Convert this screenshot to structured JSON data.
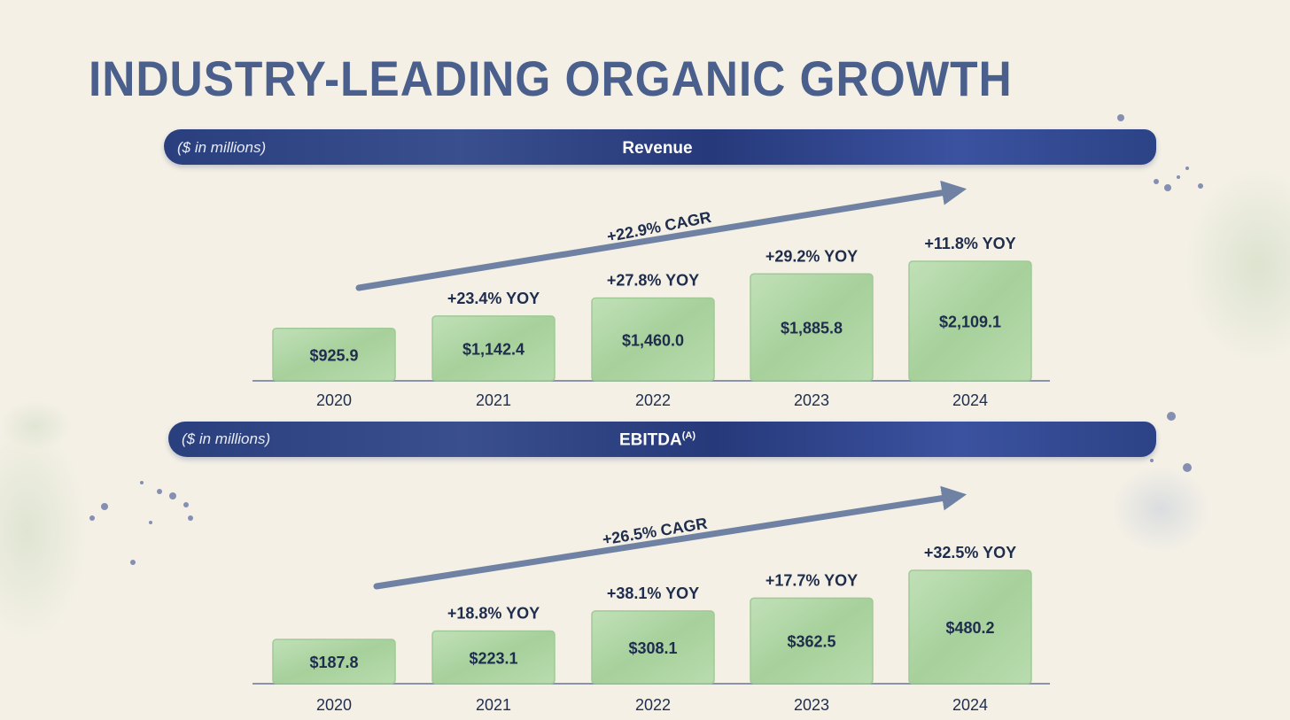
{
  "title": "INDUSTRY-LEADING ORGANIC GROWTH",
  "colors": {
    "band": "#2c4386",
    "bar": "#a9d3a0",
    "text": "#1f2d4d",
    "arrow": "#5a6f99"
  },
  "chart_data": [
    {
      "type": "bar",
      "title": "Revenue",
      "note": "($ in millions)",
      "categories": [
        "2020",
        "2021",
        "2022",
        "2023",
        "2024"
      ],
      "values": [
        925.9,
        1142.4,
        1460.0,
        1885.8,
        2109.1
      ],
      "value_labels": [
        "$925.9",
        "$1,142.4",
        "$1,460.0",
        "$1,885.8",
        "$2,109.1"
      ],
      "yoy_labels": [
        "",
        "+23.4% YOY",
        "+27.8% YOY",
        "+29.2% YOY",
        "+11.8% YOY"
      ],
      "cagr_label": "+22.9% CAGR",
      "ylim": [
        0,
        2109.1
      ]
    },
    {
      "type": "bar",
      "title": "EBITDA",
      "title_superscript": "(A)",
      "note": "($ in millions)",
      "categories": [
        "2020",
        "2021",
        "2022",
        "2023",
        "2024"
      ],
      "values": [
        187.8,
        223.1,
        308.1,
        362.5,
        480.2
      ],
      "value_labels": [
        "$187.8",
        "$223.1",
        "$308.1",
        "$362.5",
        "$480.2"
      ],
      "yoy_labels": [
        "",
        "+18.8% YOY",
        "+38.1% YOY",
        "+17.7% YOY",
        "+32.5% YOY"
      ],
      "cagr_label": "+26.5% CAGR",
      "ylim": [
        0,
        480.2
      ]
    }
  ]
}
